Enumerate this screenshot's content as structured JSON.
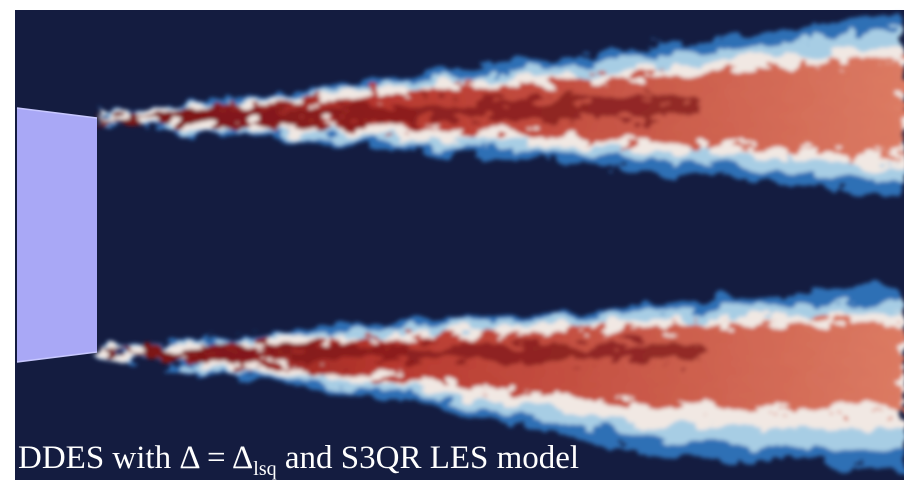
{
  "caption": {
    "main": "DDES with Δ = Δ",
    "subscript": "lsq",
    "rest": " and S3QR LES model"
  }
}
